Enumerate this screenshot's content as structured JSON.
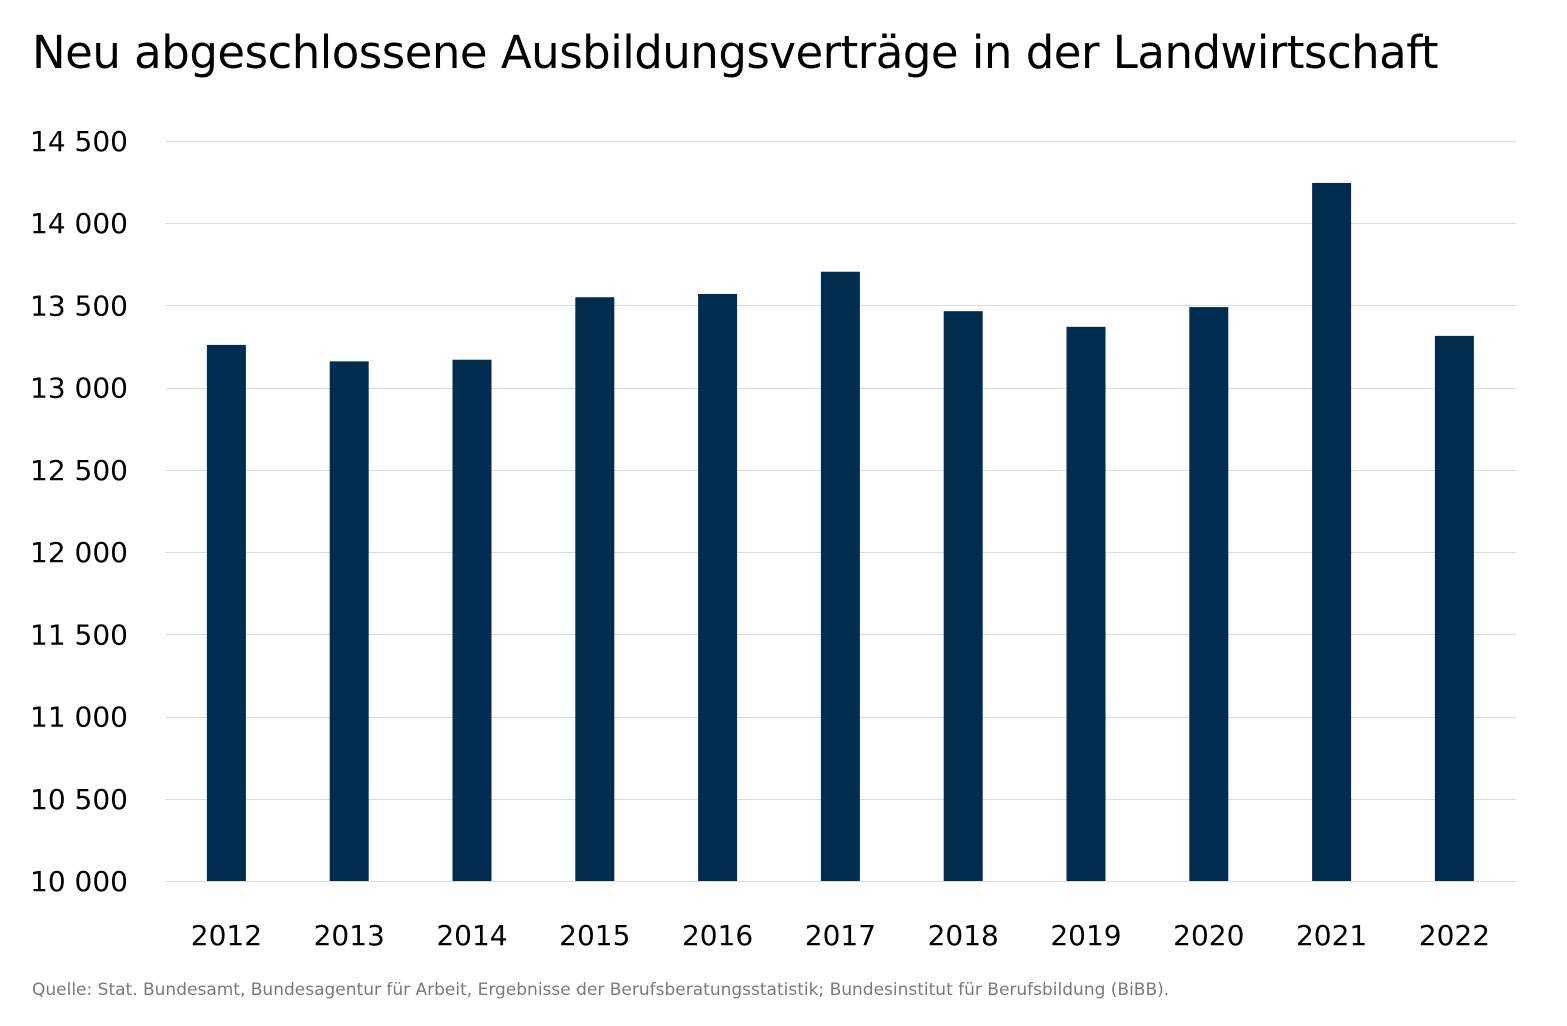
{
  "chart_data": {
    "type": "bar",
    "title": "Neu abgeschlossene Ausbildungsverträge in der Landwirtschaft",
    "categories": [
      "2012",
      "2013",
      "2014",
      "2015",
      "2016",
      "2017",
      "2018",
      "2019",
      "2020",
      "2021",
      "2022"
    ],
    "values": [
      13260,
      13160,
      13170,
      13550,
      13570,
      13705,
      13465,
      13370,
      13490,
      14245,
      13315
    ],
    "ylim": [
      10000,
      14500
    ],
    "yticks": [
      10000,
      10500,
      11000,
      11500,
      12000,
      12500,
      13000,
      13500,
      14000,
      14500
    ],
    "ytick_labels": [
      "10 000",
      "10 500",
      "11 000",
      "11 500",
      "12 000",
      "12 500",
      "13 000",
      "13 500",
      "14 000",
      "14 500"
    ],
    "xlabel": "",
    "ylabel": "",
    "grid": true,
    "bar_color": "#002d4f",
    "grid_color": "#dcdcdc"
  },
  "source": "Quelle: Stat. Bundesamt, Bundesagentur für Arbeit, Ergebnisse der Berufsberatungsstatistik; Bundesinstitut für Berufsbildung (BiBB)."
}
